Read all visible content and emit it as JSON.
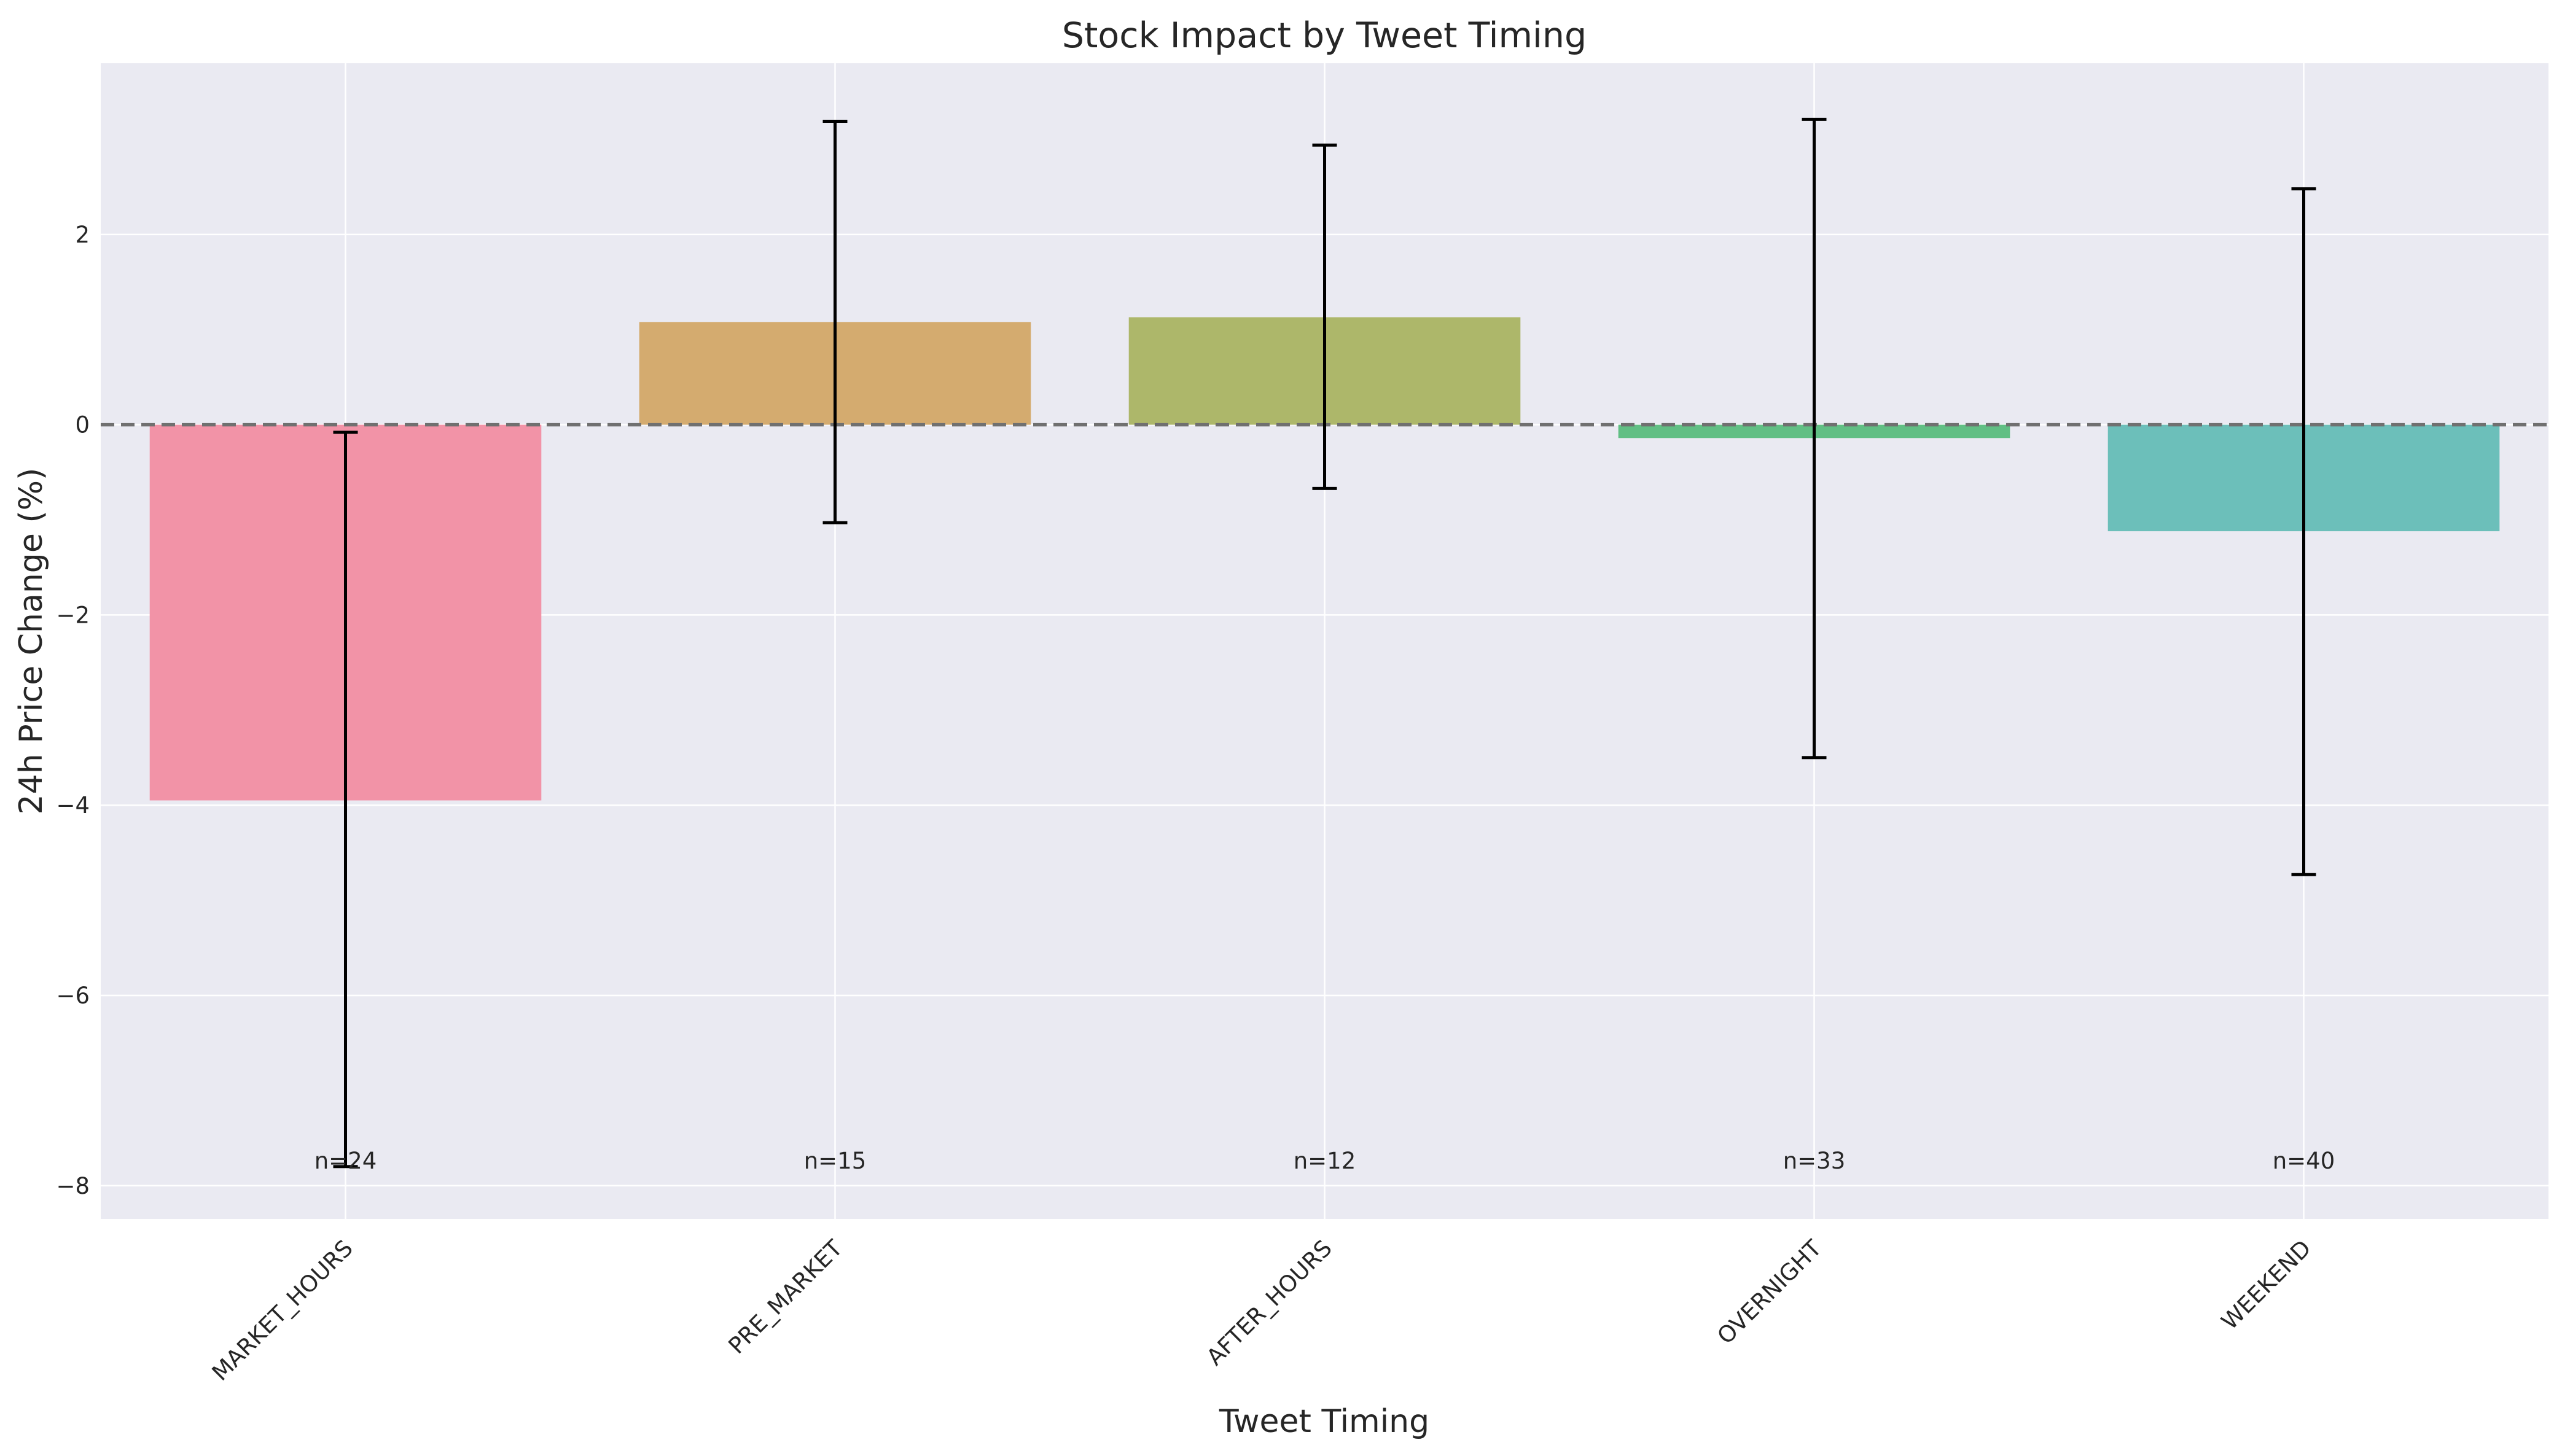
{
  "chart_data": {
    "type": "bar",
    "title": "Stock Impact by Tweet Timing",
    "xlabel": "Tweet Timing",
    "ylabel": "24h Price Change (%)",
    "ylim": [
      -8.35,
      3.8
    ],
    "yticks": [
      2,
      0,
      -2,
      -4,
      -6,
      -8
    ],
    "ytick_labels": [
      "2",
      "0",
      "−2",
      "−4",
      "−6",
      "−8"
    ],
    "grid": true,
    "reference_line": 0,
    "categories": [
      "MARKET_HOURS",
      "PRE_MARKET",
      "AFTER_HOURS",
      "OVERNIGHT",
      "WEEKEND"
    ],
    "values": [
      -3.95,
      1.08,
      1.13,
      -0.14,
      -1.12
    ],
    "error_low": [
      -7.8,
      -1.03,
      -0.67,
      -3.5,
      -4.73
    ],
    "error_high": [
      -0.08,
      3.19,
      2.94,
      3.21,
      2.48
    ],
    "counts": [
      "n=24",
      "n=15",
      "n=12",
      "n=33",
      "n=40"
    ],
    "colors": [
      "#f293a7",
      "#d4ab6f",
      "#adb76a",
      "#61bf84",
      "#6cbfba"
    ]
  }
}
